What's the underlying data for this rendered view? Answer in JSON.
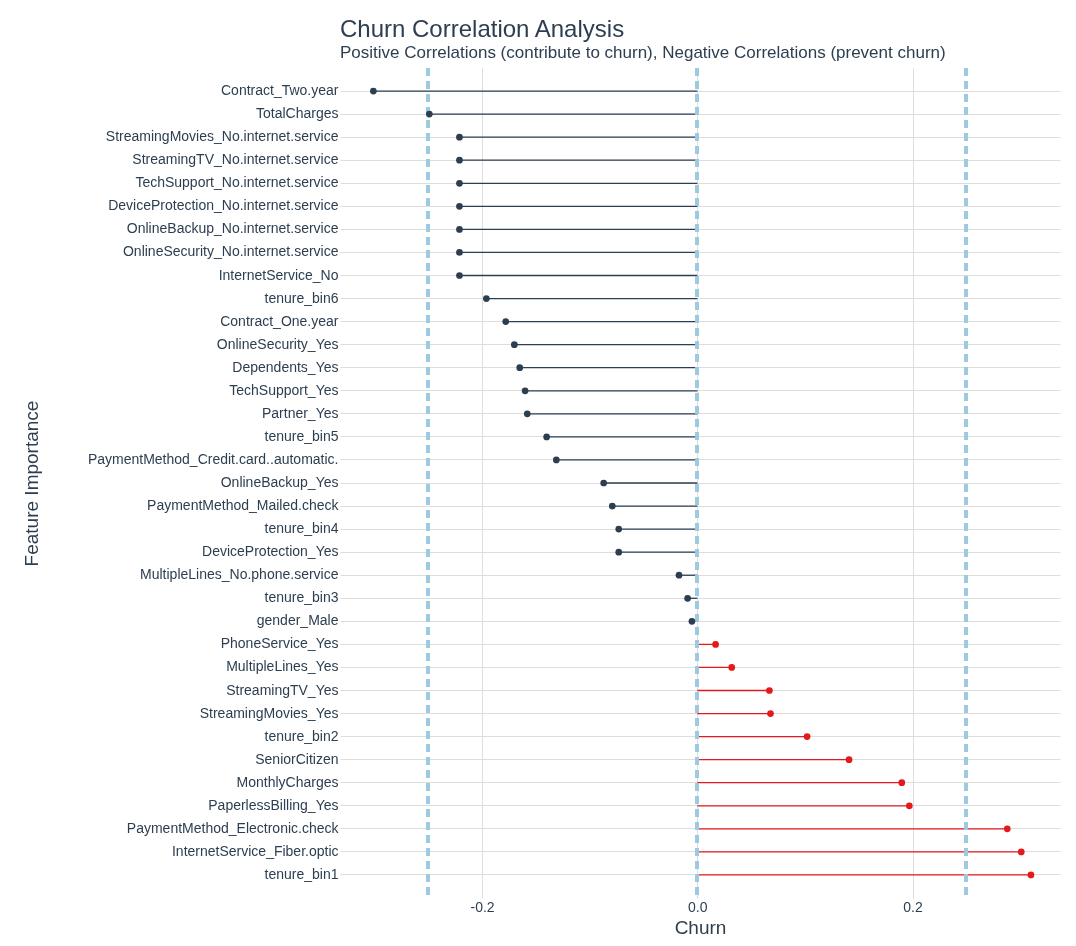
{
  "chart_data": {
    "type": "lollipop",
    "title": "Churn Correlation Analysis",
    "subtitle": "Positive Correlations (contribute to churn), Negative Correlations (prevent churn)",
    "xlabel": "Churn",
    "ylabel": "Feature Importance",
    "orientation": "horizontal",
    "categories": [
      "Contract_Two.year",
      "TotalCharges",
      "StreamingMovies_No.internet.service",
      "StreamingTV_No.internet.service",
      "TechSupport_No.internet.service",
      "DeviceProtection_No.internet.service",
      "OnlineBackup_No.internet.service",
      "OnlineSecurity_No.internet.service",
      "InternetService_No",
      "tenure_bin6",
      "Contract_One.year",
      "OnlineSecurity_Yes",
      "Dependents_Yes",
      "TechSupport_Yes",
      "Partner_Yes",
      "tenure_bin5",
      "PaymentMethod_Credit.card..automatic.",
      "OnlineBackup_Yes",
      "PaymentMethod_Mailed.check",
      "tenure_bin4",
      "DeviceProtection_Yes",
      "MultipleLines_No.phone.service",
      "tenure_bin3",
      "gender_Male",
      "PhoneService_Yes",
      "MultipleLines_Yes",
      "StreamingTV_Yes",
      "StreamingMovies_Yes",
      "tenure_bin2",
      "SeniorCitizen",
      "MonthlyCharges",
      "PaperlessBilling_Yes",
      "PaymentMethod_Electronic.check",
      "InternetService_Fiber.optic",
      "tenure_bin1"
    ],
    "values": [
      -0.301,
      -0.249,
      -0.221,
      -0.221,
      -0.221,
      -0.221,
      -0.221,
      -0.221,
      -0.221,
      -0.196,
      -0.178,
      -0.17,
      -0.165,
      -0.16,
      -0.158,
      -0.14,
      -0.131,
      -0.087,
      -0.079,
      -0.073,
      -0.073,
      -0.017,
      -0.009,
      -0.005,
      0.017,
      0.032,
      0.067,
      0.068,
      0.102,
      0.141,
      0.19,
      0.197,
      0.288,
      0.301,
      0.31
    ],
    "colors": [
      "#2c3e50",
      "#2c3e50",
      "#2c3e50",
      "#2c3e50",
      "#2c3e50",
      "#2c3e50",
      "#2c3e50",
      "#2c3e50",
      "#2c3e50",
      "#2c3e50",
      "#2c3e50",
      "#2c3e50",
      "#2c3e50",
      "#2c3e50",
      "#2c3e50",
      "#2c3e50",
      "#2c3e50",
      "#2c3e50",
      "#2c3e50",
      "#2c3e50",
      "#2c3e50",
      "#2c3e50",
      "#2c3e50",
      "#2c3e50",
      "#e31a1c",
      "#e31a1c",
      "#e31a1c",
      "#e31a1c",
      "#e31a1c",
      "#e31a1c",
      "#e31a1c",
      "#e31a1c",
      "#e31a1c",
      "#e31a1c",
      "#e31a1c"
    ],
    "xlim": [
      -0.332,
      0.337
    ],
    "xticks": [
      -0.2,
      {
        "value": 0,
        "label": "0.0"
      },
      0.2
    ],
    "ref_lines": [
      {
        "axis": "x",
        "value": -0.25,
        "color": "#9ecae1",
        "line_style": "dashed"
      },
      {
        "axis": "x",
        "value": 0,
        "color": "#9ecae1",
        "line_style": "dashed"
      },
      {
        "axis": "x",
        "value": 0.25,
        "color": "#9ecae1",
        "line_style": "dashed"
      }
    ],
    "grid": true,
    "marker": "circle"
  }
}
